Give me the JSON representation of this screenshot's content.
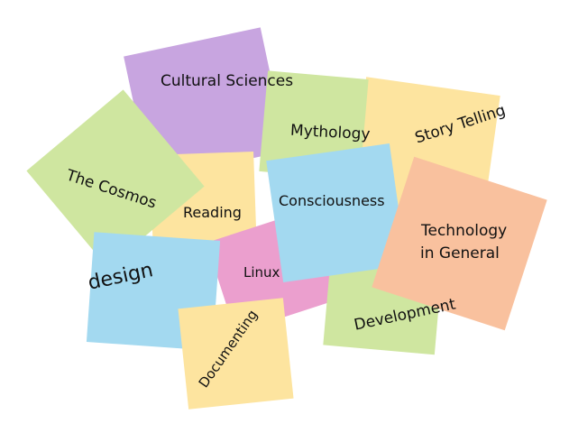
{
  "colors": {
    "purple": "#c8a5e0",
    "green": "#cfe6a0",
    "yellow": "#fde49f",
    "blue": "#a3d9f0",
    "pink": "#eb9fce",
    "orange": "#f9c19e"
  },
  "notes": {
    "cultural_sciences": "Cultural Sciences",
    "story_telling": "Story Telling",
    "mythology": "Mythology",
    "the_cosmos": "The Cosmos",
    "reading": "Reading",
    "consciousness": "Consciousness",
    "technology_line1": "Technology",
    "technology_line2": "in General",
    "linux": "Linux",
    "design": "design",
    "development": "Development",
    "documenting": "Documenting"
  }
}
